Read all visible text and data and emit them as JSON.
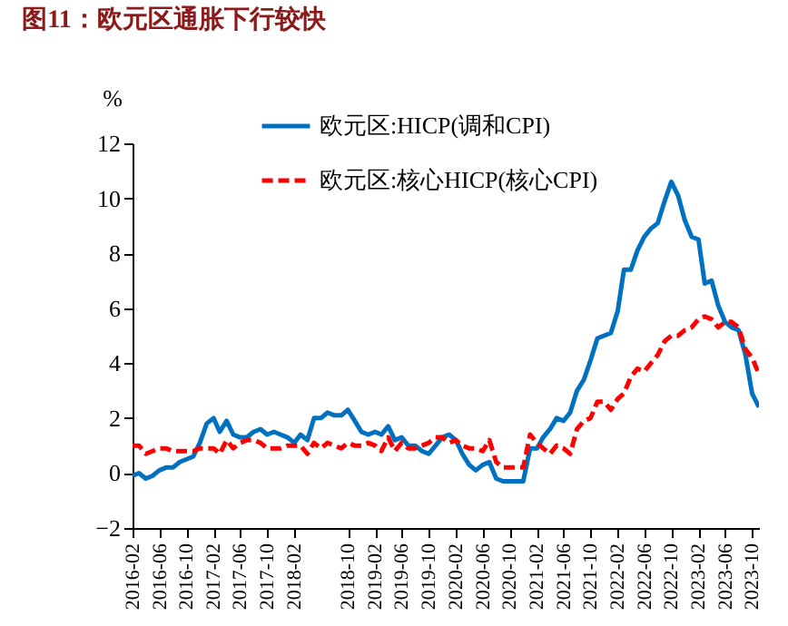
{
  "chart_data": {
    "type": "line",
    "title": "图11：欧元区通胀下行较快",
    "ylabel": "%",
    "x": [
      "2016-02",
      "2016-03",
      "2016-04",
      "2016-05",
      "2016-06",
      "2016-07",
      "2016-08",
      "2016-09",
      "2016-10",
      "2016-11",
      "2016-12",
      "2017-01",
      "2017-02",
      "2017-03",
      "2017-04",
      "2017-05",
      "2017-06",
      "2017-07",
      "2017-08",
      "2017-09",
      "2017-10",
      "2017-11",
      "2017-12",
      "2018-01",
      "2018-02",
      "2018-03",
      "2018-04",
      "2018-05",
      "2018-06",
      "2018-07",
      "2018-08",
      "2018-09",
      "2018-10",
      "2018-11",
      "2018-12",
      "2019-01",
      "2019-02",
      "2019-03",
      "2019-04",
      "2019-05",
      "2019-06",
      "2019-07",
      "2019-08",
      "2019-09",
      "2019-10",
      "2019-11",
      "2019-12",
      "2020-01",
      "2020-02",
      "2020-03",
      "2020-04",
      "2020-05",
      "2020-06",
      "2020-07",
      "2020-08",
      "2020-09",
      "2020-10",
      "2020-11",
      "2020-12",
      "2021-01",
      "2021-02",
      "2021-03",
      "2021-04",
      "2021-05",
      "2021-06",
      "2021-07",
      "2021-08",
      "2021-09",
      "2021-10",
      "2021-11",
      "2021-12",
      "2022-01",
      "2022-02",
      "2022-03",
      "2022-04",
      "2022-05",
      "2022-06",
      "2022-07",
      "2022-08",
      "2022-09",
      "2022-10",
      "2022-11",
      "2022-12",
      "2023-01",
      "2023-02",
      "2023-03",
      "2023-04",
      "2023-05",
      "2023-06",
      "2023-07",
      "2023-08",
      "2023-09",
      "2023-10",
      "2023-11"
    ],
    "series": [
      {
        "name": "欧元区:HICP(调和CPI)",
        "color": "#0070c0",
        "line_style": "solid",
        "values": [
          -0.1,
          0,
          -0.2,
          -0.1,
          0.1,
          0.2,
          0.2,
          0.4,
          0.5,
          0.6,
          1.1,
          1.8,
          2.0,
          1.5,
          1.9,
          1.4,
          1.3,
          1.3,
          1.5,
          1.6,
          1.4,
          1.5,
          1.4,
          1.3,
          1.1,
          1.4,
          1.2,
          2.0,
          2.0,
          2.2,
          2.1,
          2.1,
          2.3,
          1.9,
          1.5,
          1.4,
          1.5,
          1.4,
          1.7,
          1.2,
          1.3,
          1.0,
          1.0,
          0.8,
          0.7,
          1.0,
          1.3,
          1.4,
          1.2,
          0.7,
          0.3,
          0.1,
          0.3,
          0.4,
          -0.2,
          -0.3,
          -0.3,
          -0.3,
          -0.3,
          0.9,
          0.9,
          1.3,
          1.6,
          2.0,
          1.9,
          2.2,
          3.0,
          3.4,
          4.1,
          4.9,
          5.0,
          5.1,
          5.9,
          7.4,
          7.4,
          8.1,
          8.6,
          8.9,
          9.1,
          9.9,
          10.6,
          10.1,
          9.2,
          8.6,
          8.5,
          6.9,
          7.0,
          6.1,
          5.5,
          5.3,
          5.2,
          4.3,
          2.9,
          2.4
        ]
      },
      {
        "name": "欧元区:核心HICP(核心CPI)",
        "color": "#ff0000",
        "line_style": "dashed",
        "values": [
          1.0,
          1.0,
          0.7,
          0.8,
          0.9,
          0.9,
          0.8,
          0.8,
          0.8,
          0.8,
          0.9,
          0.9,
          0.9,
          0.7,
          1.2,
          0.9,
          1.1,
          1.2,
          1.2,
          1.1,
          0.9,
          0.9,
          0.9,
          1.0,
          1.0,
          1.0,
          0.7,
          1.1,
          0.9,
          1.1,
          1.0,
          0.9,
          1.1,
          1.0,
          1.0,
          1.1,
          1.0,
          0.8,
          1.3,
          0.8,
          1.1,
          0.9,
          0.9,
          1.0,
          1.1,
          1.3,
          1.3,
          1.1,
          1.2,
          1.0,
          0.9,
          0.9,
          0.8,
          1.2,
          0.4,
          0.2,
          0.2,
          0.2,
          0.2,
          1.4,
          1.1,
          0.9,
          0.7,
          1.0,
          0.9,
          0.7,
          1.6,
          1.9,
          2.0,
          2.6,
          2.6,
          2.3,
          2.7,
          2.9,
          3.5,
          3.8,
          3.7,
          4.0,
          4.3,
          4.8,
          5.0,
          5.0,
          5.2,
          5.3,
          5.6,
          5.7,
          5.6,
          5.3,
          5.5,
          5.5,
          5.3,
          4.5,
          4.2,
          3.6
        ]
      }
    ],
    "xlim": [
      "2016-02",
      "2023-11"
    ],
    "xticks": [
      "2016-02",
      "2016-06",
      "2016-10",
      "2017-02",
      "2017-06",
      "2017-10",
      "2018-02",
      "2018-10",
      "2019-02",
      "2019-06",
      "2019-10",
      "2020-02",
      "2020-06",
      "2020-10",
      "2021-02",
      "2021-06",
      "2021-10",
      "2022-02",
      "2022-06",
      "2022-10",
      "2023-02",
      "2023-06",
      "2023-10"
    ],
    "ylim": [
      -2,
      12
    ],
    "yticks": [
      -2,
      0,
      2,
      4,
      6,
      8,
      10,
      12
    ],
    "grid": false,
    "legend": "top right"
  }
}
